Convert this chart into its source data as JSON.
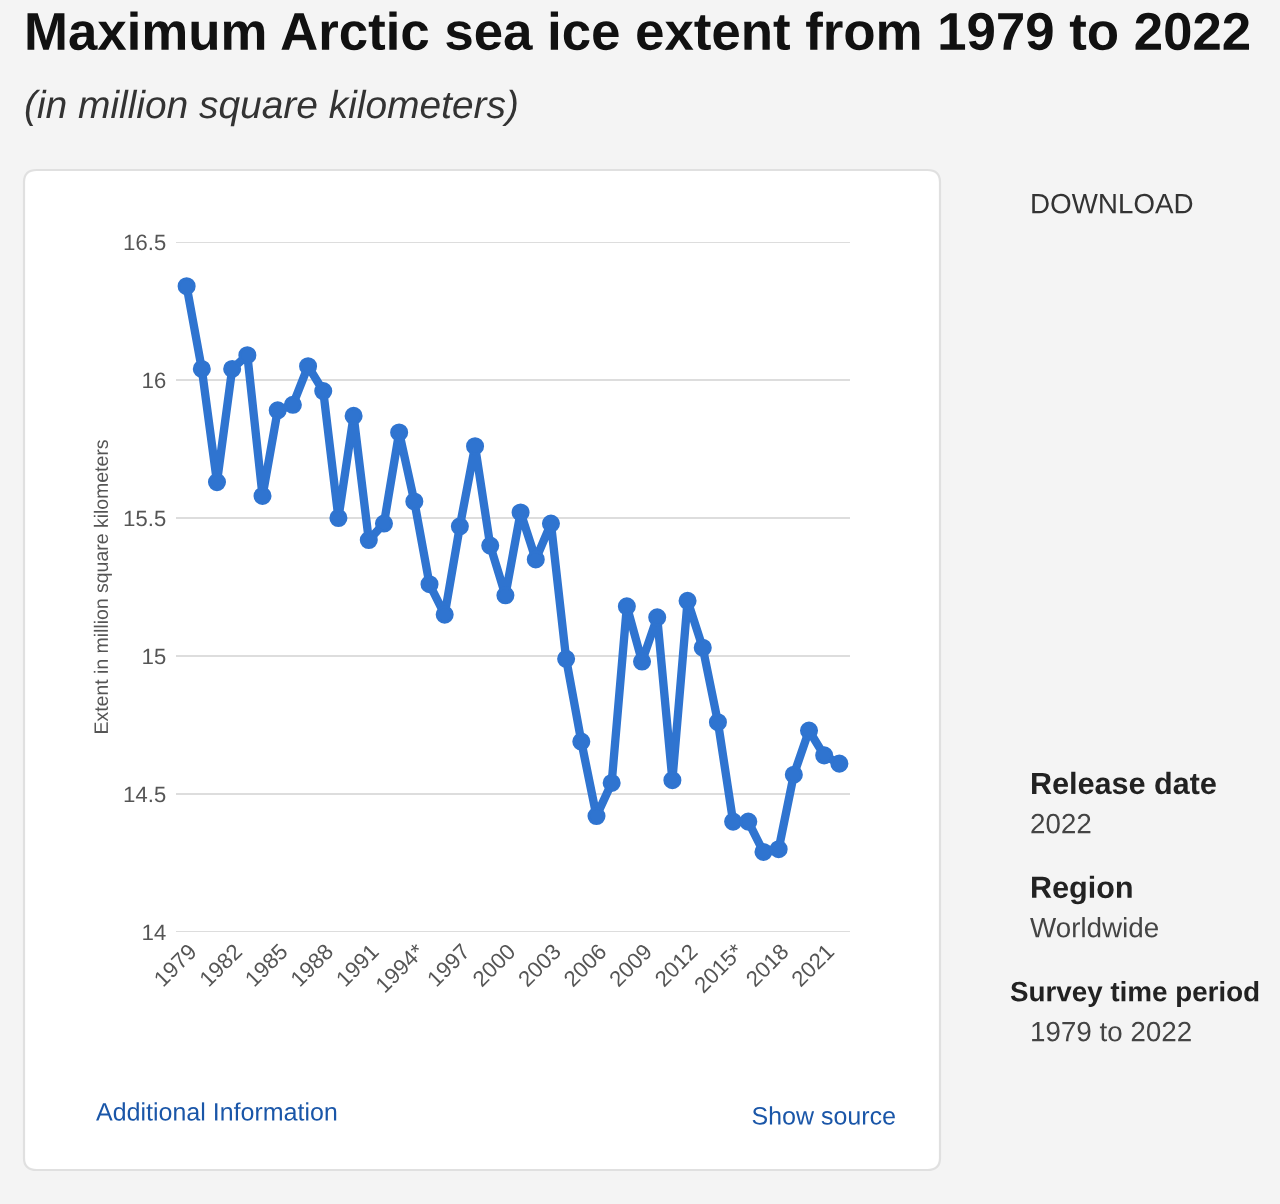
{
  "chart_data": {
    "type": "line",
    "title": "Maximum Arctic sea ice extent from 1979 to 2022",
    "subtitle": "(in million square kilometers)",
    "ylabel": "Extent in million square kilometers",
    "categories": [
      "1979",
      null,
      null,
      "1982",
      null,
      null,
      "1985",
      null,
      null,
      "1988",
      null,
      null,
      "1991",
      null,
      null,
      "1994*",
      null,
      null,
      "1997",
      null,
      null,
      "2000",
      null,
      null,
      "2003",
      null,
      null,
      "2006",
      null,
      null,
      "2009",
      null,
      null,
      "2012",
      null,
      null,
      "2015*",
      null,
      null,
      "2018",
      null,
      null,
      "2021",
      null
    ],
    "series": [
      {
        "color": "#2f74d0",
        "values": [
          16.34,
          16.04,
          15.63,
          16.04,
          16.09,
          15.58,
          15.89,
          15.91,
          16.05,
          15.96,
          15.5,
          15.87,
          15.42,
          15.48,
          15.81,
          15.56,
          15.26,
          15.15,
          15.47,
          15.76,
          15.4,
          15.22,
          15.52,
          15.35,
          15.48,
          14.99,
          14.69,
          14.42,
          14.54,
          15.18,
          14.98,
          15.14,
          14.55,
          15.2,
          15.03,
          14.76,
          14.4,
          14.4,
          14.29,
          14.3,
          14.57,
          14.73,
          14.64,
          14.61
        ]
      }
    ],
    "ylim": [
      14,
      16.5
    ],
    "yticks": [
      14,
      14.5,
      15,
      15.5,
      16,
      16.5
    ],
    "grid": "y",
    "marker": "circle",
    "line_style": "solid",
    "annotations": [
      "Additional Information",
      "Show source",
      "DOWNLOAD",
      "Release date",
      "2022",
      "Region",
      "Worldwide",
      "Survey time period",
      "1979 to 2022"
    ]
  }
}
